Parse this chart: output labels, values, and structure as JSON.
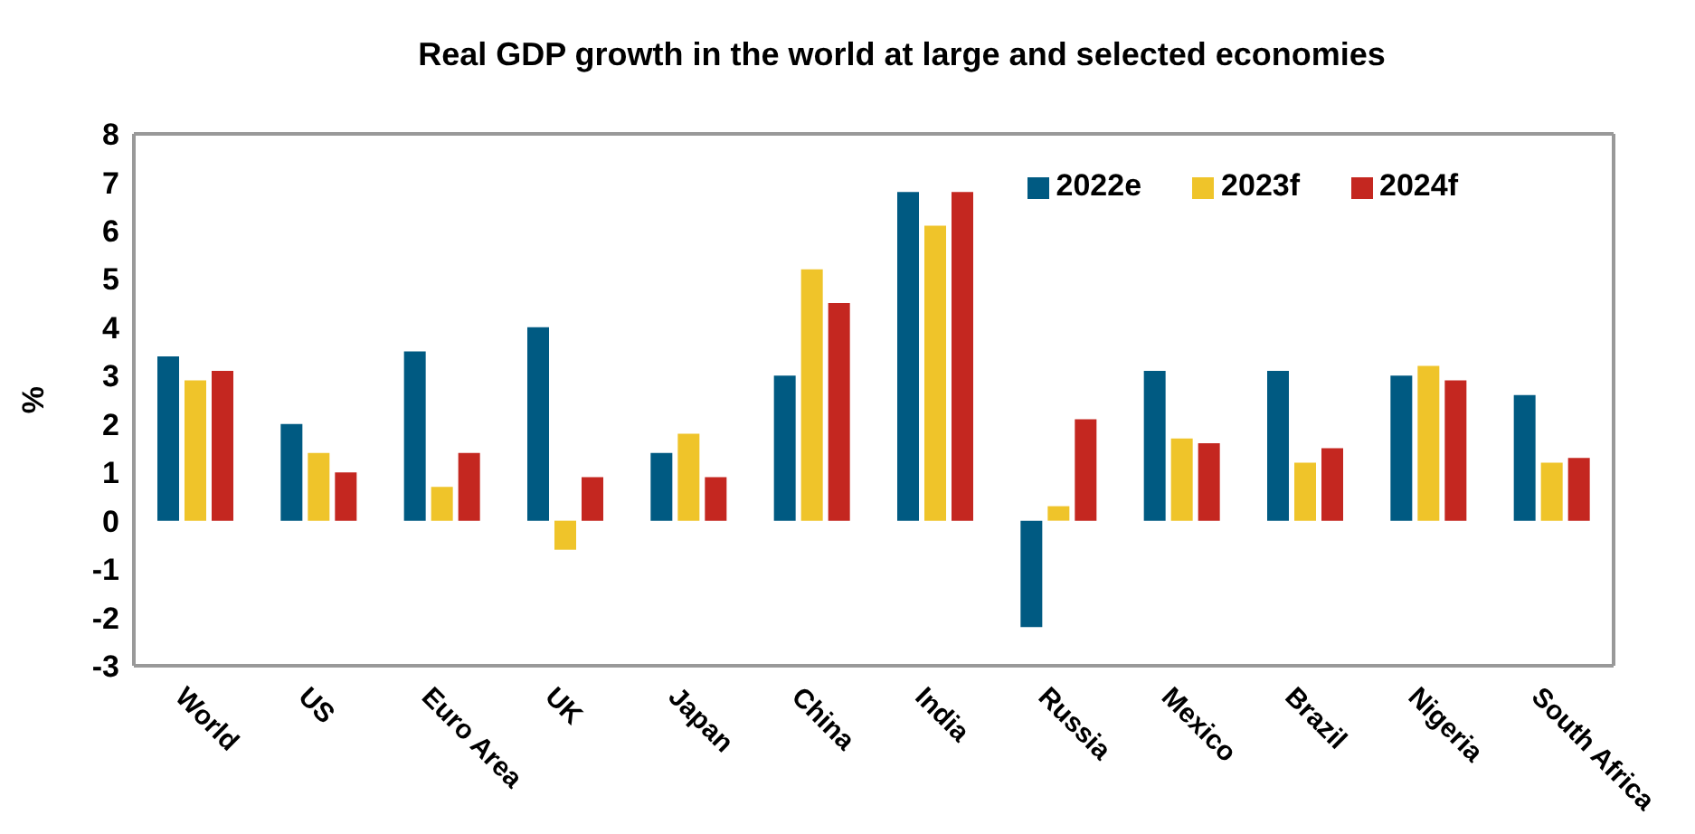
{
  "chart_data": {
    "type": "bar",
    "title": "Real GDP growth in the world at large and selected economies",
    "ylabel": "%",
    "categories": [
      "World",
      "US",
      "Euro Area",
      "UK",
      "Japan",
      "China",
      "India",
      "Russia",
      "Mexico",
      "Brazil",
      "Nigeria",
      "South Africa"
    ],
    "series": [
      {
        "name": "2022e",
        "color": "#005a82",
        "values": [
          3.4,
          2.0,
          3.5,
          4.0,
          1.4,
          3.0,
          6.8,
          -2.2,
          3.1,
          3.1,
          3.0,
          2.6
        ]
      },
      {
        "name": "2023f",
        "color": "#efc42a",
        "values": [
          2.9,
          1.4,
          0.7,
          -0.6,
          1.8,
          5.2,
          6.1,
          0.3,
          1.7,
          1.2,
          3.2,
          1.2
        ]
      },
      {
        "name": "2024f",
        "color": "#c42720",
        "values": [
          3.1,
          1.0,
          1.4,
          0.9,
          0.9,
          4.5,
          6.8,
          2.1,
          1.6,
          1.5,
          2.9,
          1.3
        ]
      }
    ],
    "ylim": [
      -3,
      8
    ],
    "yticks": [
      -3,
      -2,
      -1,
      0,
      1,
      2,
      3,
      4,
      5,
      6,
      7,
      8
    ],
    "grid": false,
    "legend": "top right"
  }
}
